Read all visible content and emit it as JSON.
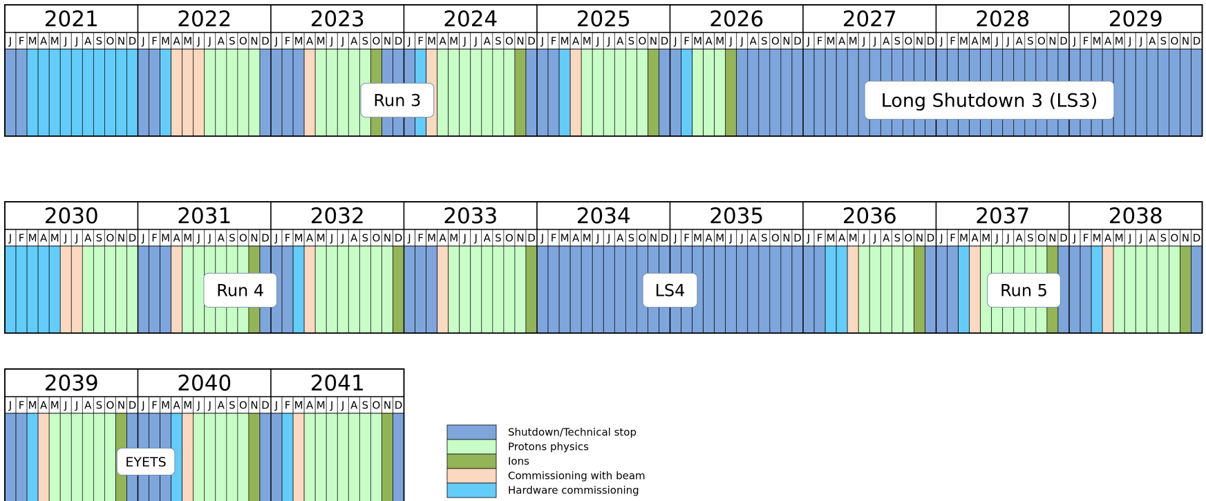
{
  "chart_data": {
    "type": "heatmap",
    "title": "",
    "month_letters": [
      "J",
      "F",
      "M",
      "A",
      "M",
      "J",
      "J",
      "A",
      "S",
      "O",
      "N",
      "D"
    ],
    "colors": {
      "S": "#7ea6dc",
      "P": "#c8fdc8",
      "I": "#94b458",
      "C": "#fbd8c0",
      "H": "#64ccf8"
    },
    "legend": [
      {
        "key": "S",
        "label": "Shutdown/Technical stop"
      },
      {
        "key": "P",
        "label": "Protons physics"
      },
      {
        "key": "I",
        "label": "Ions"
      },
      {
        "key": "C",
        "label": "Commissioning with beam"
      },
      {
        "key": "H",
        "label": "Hardware commissioning"
      }
    ],
    "rows": [
      {
        "years": [
          {
            "year": "2021",
            "months": [
              "S",
              "S",
              "H",
              "H",
              "H",
              "H",
              "H",
              "H",
              "H",
              "H",
              "H",
              "H"
            ]
          },
          {
            "year": "2022",
            "months": [
              "S",
              "S",
              "H",
              "C",
              "C",
              "C",
              "P",
              "P",
              "P",
              "P",
              "P",
              "S"
            ]
          },
          {
            "year": "2023",
            "months": [
              "S",
              "S",
              "S",
              "C",
              "P",
              "P",
              "P",
              "P",
              "P",
              "I",
              "S",
              "S"
            ]
          },
          {
            "year": "2024",
            "months": [
              "S",
              "H",
              "C",
              "P",
              "P",
              "P",
              "P",
              "P",
              "P",
              "P",
              "I",
              "S"
            ]
          },
          {
            "year": "2025",
            "months": [
              "S",
              "S",
              "H",
              "C",
              "P",
              "P",
              "P",
              "P",
              "P",
              "P",
              "I",
              "S"
            ]
          },
          {
            "year": "2026",
            "months": [
              "S",
              "H",
              "P",
              "P",
              "P",
              "I",
              "S",
              "S",
              "S",
              "S",
              "S",
              "S"
            ]
          },
          {
            "year": "2027",
            "months": [
              "S",
              "S",
              "S",
              "S",
              "S",
              "S",
              "S",
              "S",
              "S",
              "S",
              "S",
              "S"
            ]
          },
          {
            "year": "2028",
            "months": [
              "S",
              "S",
              "S",
              "S",
              "S",
              "S",
              "S",
              "S",
              "S",
              "S",
              "S",
              "S"
            ]
          },
          {
            "year": "2029",
            "months": [
              "S",
              "S",
              "S",
              "S",
              "S",
              "S",
              "S",
              "S",
              "S",
              "S",
              "S",
              "S"
            ]
          }
        ],
        "callouts": [
          {
            "label": "Run 3",
            "year_pos": 2.95
          },
          {
            "label": "Long Shutdown 3 (LS3)",
            "year_pos": 7.4
          }
        ]
      },
      {
        "years": [
          {
            "year": "2030",
            "months": [
              "H",
              "H",
              "H",
              "H",
              "H",
              "C",
              "C",
              "P",
              "P",
              "P",
              "P",
              "P"
            ]
          },
          {
            "year": "2031",
            "months": [
              "S",
              "S",
              "S",
              "C",
              "P",
              "P",
              "P",
              "P",
              "P",
              "P",
              "I",
              "S"
            ]
          },
          {
            "year": "2032",
            "months": [
              "S",
              "S",
              "H",
              "C",
              "P",
              "P",
              "P",
              "P",
              "P",
              "P",
              "P",
              "I"
            ]
          },
          {
            "year": "2033",
            "months": [
              "S",
              "S",
              "S",
              "C",
              "P",
              "P",
              "P",
              "P",
              "P",
              "P",
              "P",
              "I"
            ]
          },
          {
            "year": "2034",
            "months": [
              "S",
              "S",
              "S",
              "S",
              "S",
              "S",
              "S",
              "S",
              "S",
              "S",
              "S",
              "S"
            ]
          },
          {
            "year": "2035",
            "months": [
              "S",
              "S",
              "S",
              "S",
              "S",
              "S",
              "S",
              "S",
              "S",
              "S",
              "S",
              "S"
            ]
          },
          {
            "year": "2036",
            "months": [
              "S",
              "S",
              "H",
              "H",
              "C",
              "P",
              "P",
              "P",
              "P",
              "P",
              "I",
              "S"
            ]
          },
          {
            "year": "2037",
            "months": [
              "S",
              "S",
              "H",
              "C",
              "P",
              "P",
              "P",
              "P",
              "P",
              "P",
              "I",
              "S"
            ]
          },
          {
            "year": "2038",
            "months": [
              "S",
              "S",
              "H",
              "C",
              "P",
              "P",
              "P",
              "P",
              "P",
              "P",
              "I",
              "S"
            ]
          }
        ],
        "callouts": [
          {
            "label": "Run 4",
            "year_pos": 1.77
          },
          {
            "label": "LS4",
            "year_pos": 5.0
          },
          {
            "label": "Run 5",
            "year_pos": 7.66
          }
        ]
      },
      {
        "years": [
          {
            "year": "2039",
            "months": [
              "S",
              "S",
              "H",
              "C",
              "P",
              "P",
              "P",
              "P",
              "P",
              "P",
              "I",
              "S"
            ]
          },
          {
            "year": "2040",
            "months": [
              "S",
              "S",
              "S",
              "H",
              "C",
              "P",
              "P",
              "P",
              "P",
              "P",
              "I",
              "S"
            ]
          },
          {
            "year": "2041",
            "months": [
              "S",
              "H",
              "C",
              "P",
              "P",
              "P",
              "P",
              "P",
              "P",
              "P",
              "I",
              "S"
            ]
          }
        ],
        "callouts": [
          {
            "label": "EYETS",
            "year_pos": 1.06
          }
        ]
      }
    ]
  }
}
